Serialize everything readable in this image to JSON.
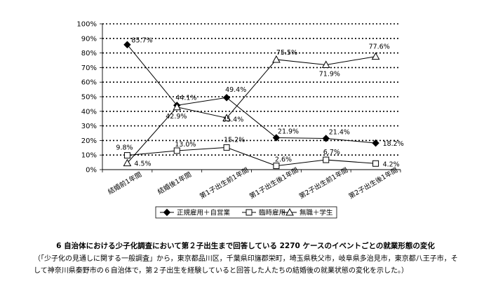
{
  "chart_data": {
    "type": "line",
    "categories": [
      "結婚前1年間",
      "結婚後1年間",
      "第1子出生前1年間",
      "第1子出生後1年間",
      "第2子出生前1年間",
      "第2子出生後1年間"
    ],
    "ylim": [
      0,
      100
    ],
    "ytick_labels": [
      "0%",
      "10%",
      "20%",
      "30%",
      "40%",
      "50%",
      "60%",
      "70%",
      "80%",
      "90%",
      "100%"
    ],
    "grid": "horizontal dotted",
    "legend_position": "bottom",
    "series": [
      {
        "name": "正規雇用＋自営業",
        "marker": "diamond-filled",
        "values": [
          85.7,
          44.1,
          49.4,
          21.9,
          21.4,
          18.2
        ],
        "labels": [
          "85.7%",
          "44.1%",
          "49.4%",
          "21.9%",
          "21.4%",
          "18.2%"
        ]
      },
      {
        "name": "臨時雇用",
        "marker": "square-open",
        "values": [
          9.8,
          13.0,
          15.2,
          2.6,
          6.7,
          4.2
        ],
        "labels": [
          "9.8%",
          "13.0%",
          "15.2%",
          "2.6%",
          "6.7%",
          "4.2%"
        ]
      },
      {
        "name": "無職＋学生",
        "marker": "triangle-open",
        "values": [
          4.5,
          42.9,
          35.4,
          75.5,
          71.9,
          77.6
        ],
        "labels": [
          "4.5%",
          "42.9%",
          "35.4%",
          "75.5%",
          "71.9%",
          "77.6%"
        ]
      }
    ]
  },
  "caption": {
    "title": "6 自治体における少子化調査において第２子出生まで回答している 2270 ケースのイベントごとの就業形態の変化",
    "note": "（「少子化の見通しに関する一般調査」から，東京都品川区，千葉県印旛郡栄町，埼玉県秩父市，岐阜県多治見市，東京都八王子市，そして神奈川県秦野市の６自治体で，第２子出生を経験していると回答した人たちの結婚後の就業状態の変化を示した。）"
  }
}
